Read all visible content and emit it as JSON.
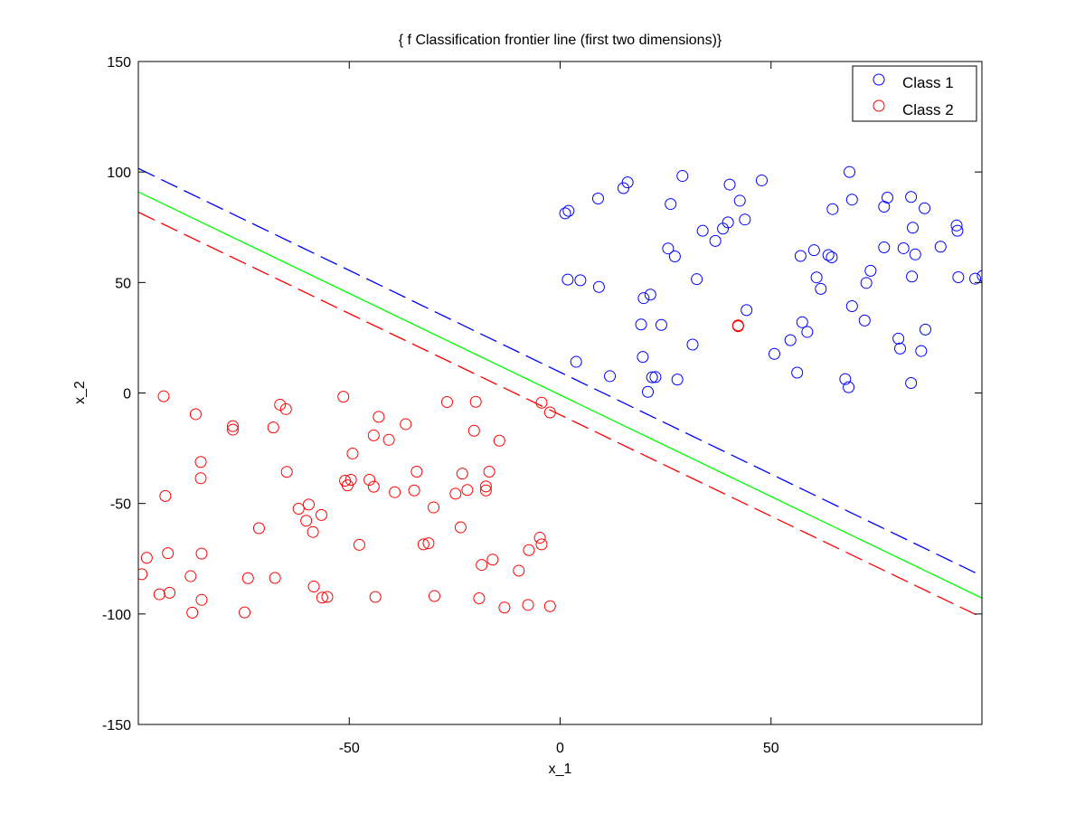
{
  "chart_data": {
    "type": "scatter",
    "title": "{ f Classification frontier line (first two dimensions)}",
    "xlabel": "x_1",
    "ylabel": "x_2",
    "xlim": [
      -100,
      100
    ],
    "ylim": [
      -150,
      150
    ],
    "xticks": [
      -50,
      0,
      50
    ],
    "yticks": [
      -150,
      -100,
      -50,
      0,
      50,
      100,
      150
    ],
    "xtick_labels": [
      "-50",
      "0",
      "50"
    ],
    "ytick_labels": [
      "-150",
      "-100",
      "-50",
      "0",
      "50",
      "100",
      "150"
    ],
    "grid": false,
    "legend_position": "top-right",
    "series": [
      {
        "name": "Class 1",
        "kind": "scatter",
        "marker": "circle-open",
        "color": "#0000ff",
        "points": [
          [
            1.2,
            81.3
          ],
          [
            2.0,
            82.4
          ],
          [
            1.8,
            51.3
          ],
          [
            4.8,
            51.0
          ],
          [
            9.2,
            48.0
          ],
          [
            9.0,
            88.0
          ],
          [
            15.0,
            92.7
          ],
          [
            16.0,
            95.3
          ],
          [
            3.8,
            14.1
          ],
          [
            11.8,
            7.6
          ],
          [
            19.2,
            31.0
          ],
          [
            19.6,
            16.3
          ],
          [
            19.8,
            42.9
          ],
          [
            21.4,
            44.5
          ],
          [
            20.8,
            0.5
          ],
          [
            21.8,
            7.1
          ],
          [
            22.6,
            7.2
          ],
          [
            24.0,
            30.8
          ],
          [
            25.6,
            65.4
          ],
          [
            26.2,
            85.5
          ],
          [
            27.2,
            61.8
          ],
          [
            27.8,
            6.1
          ],
          [
            29.0,
            98.2
          ],
          [
            31.4,
            21.9
          ],
          [
            32.4,
            51.5
          ],
          [
            33.8,
            73.4
          ],
          [
            36.8,
            68.8
          ],
          [
            38.6,
            74.4
          ],
          [
            39.8,
            77.2
          ],
          [
            40.2,
            94.3
          ],
          [
            42.6,
            87.0
          ],
          [
            43.8,
            78.5
          ],
          [
            44.2,
            37.5
          ],
          [
            47.8,
            96.2
          ],
          [
            50.8,
            17.7
          ],
          [
            54.6,
            23.9
          ],
          [
            56.2,
            9.2
          ],
          [
            57.0,
            62.0
          ],
          [
            57.4,
            32.0
          ],
          [
            58.6,
            27.6
          ],
          [
            60.2,
            64.6
          ],
          [
            60.8,
            52.3
          ],
          [
            61.8,
            47.1
          ],
          [
            63.6,
            62.4
          ],
          [
            64.4,
            61.4
          ],
          [
            64.6,
            83.2
          ],
          [
            67.6,
            6.3
          ],
          [
            68.4,
            2.6
          ],
          [
            68.6,
            100.0
          ],
          [
            69.2,
            87.5
          ],
          [
            69.2,
            39.3
          ],
          [
            72.2,
            32.8
          ],
          [
            72.6,
            49.8
          ],
          [
            73.6,
            55.3
          ],
          [
            76.8,
            84.3
          ],
          [
            76.8,
            65.9
          ],
          [
            77.6,
            88.4
          ],
          [
            80.2,
            24.6
          ],
          [
            80.6,
            20.1
          ],
          [
            81.4,
            65.5
          ],
          [
            83.2,
            88.7
          ],
          [
            83.2,
            4.5
          ],
          [
            83.4,
            52.7
          ],
          [
            83.6,
            74.8
          ],
          [
            84.2,
            62.7
          ],
          [
            85.6,
            19.0
          ],
          [
            86.4,
            83.6
          ],
          [
            86.6,
            28.7
          ],
          [
            90.2,
            66.2
          ],
          [
            94.0,
            75.8
          ],
          [
            94.2,
            73.4
          ],
          [
            94.4,
            52.4
          ],
          [
            98.4,
            51.7
          ],
          [
            100.2,
            53.0
          ]
        ]
      },
      {
        "name": "Class 2",
        "kind": "scatter",
        "marker": "circle-open",
        "color": "#ff0000",
        "points": [
          [
            -99.2,
            -82.0
          ],
          [
            -98.0,
            -74.6
          ],
          [
            -95.0,
            -91.1
          ],
          [
            -94.0,
            -1.5
          ],
          [
            -93.6,
            -46.6
          ],
          [
            -93.0,
            -72.5
          ],
          [
            -92.6,
            -90.4
          ],
          [
            -87.6,
            -82.9
          ],
          [
            -87.2,
            -99.4
          ],
          [
            -86.4,
            -9.6
          ],
          [
            -85.2,
            -31.2
          ],
          [
            -85.2,
            -38.6
          ],
          [
            -85.0,
            -72.7
          ],
          [
            -85.0,
            -93.6
          ],
          [
            -77.6,
            -15.0
          ],
          [
            -77.6,
            -16.6
          ],
          [
            -74.8,
            -99.3
          ],
          [
            -74.0,
            -83.8
          ],
          [
            -71.4,
            -61.2
          ],
          [
            -68.0,
            -15.6
          ],
          [
            -67.6,
            -83.7
          ],
          [
            -66.4,
            -5.3
          ],
          [
            -65.0,
            -7.3
          ],
          [
            -64.8,
            -35.7
          ],
          [
            -62.0,
            -52.4
          ],
          [
            -60.2,
            -57.8
          ],
          [
            -59.6,
            -50.5
          ],
          [
            -58.6,
            -62.9
          ],
          [
            -58.4,
            -87.6
          ],
          [
            -56.6,
            -55.2
          ],
          [
            -56.4,
            -92.6
          ],
          [
            -55.2,
            -92.3
          ],
          [
            -51.4,
            -1.7
          ],
          [
            -51.0,
            -39.7
          ],
          [
            -50.4,
            -41.8
          ],
          [
            -49.6,
            -39.3
          ],
          [
            -49.2,
            -27.4
          ],
          [
            -47.6,
            -68.7
          ],
          [
            -45.2,
            -39.3
          ],
          [
            -44.2,
            -19.2
          ],
          [
            -44.2,
            -42.4
          ],
          [
            -43.8,
            -92.3
          ],
          [
            -43.0,
            -10.8
          ],
          [
            -40.6,
            -21.2
          ],
          [
            -39.2,
            -44.9
          ],
          [
            -36.6,
            -14.1
          ],
          [
            -34.6,
            -44.1
          ],
          [
            -34.0,
            -35.6
          ],
          [
            -32.4,
            -68.5
          ],
          [
            -31.2,
            -68.0
          ],
          [
            -30.0,
            -51.8
          ],
          [
            -29.8,
            -91.9
          ],
          [
            -26.8,
            -4.1
          ],
          [
            -24.8,
            -45.6
          ],
          [
            -23.6,
            -60.8
          ],
          [
            -23.2,
            -36.5
          ],
          [
            -22.0,
            -43.9
          ],
          [
            -20.4,
            -17.1
          ],
          [
            -20.0,
            -4.0
          ],
          [
            -19.2,
            -92.9
          ],
          [
            -18.6,
            -77.8
          ],
          [
            -17.6,
            -44.1
          ],
          [
            -17.6,
            -42.3
          ],
          [
            -16.8,
            -35.6
          ],
          [
            -16.0,
            -75.4
          ],
          [
            -14.4,
            -21.6
          ],
          [
            -13.2,
            -97.1
          ],
          [
            -9.8,
            -80.4
          ],
          [
            -7.4,
            -71.1
          ],
          [
            -7.6,
            -95.9
          ],
          [
            -4.8,
            -65.5
          ],
          [
            -4.4,
            -68.5
          ],
          [
            -4.4,
            -4.4
          ],
          [
            -2.4,
            -8.8
          ],
          [
            -2.4,
            -96.5
          ],
          [
            42.2,
            30.6
          ],
          [
            42.2,
            30.2
          ],
          [
            42.2,
            30.4
          ]
        ]
      },
      {
        "name": "",
        "kind": "line",
        "color": "#00ff00",
        "dash": "solid",
        "points": [
          [
            -100,
            91.0
          ],
          [
            100,
            -92.8
          ]
        ]
      },
      {
        "name": "",
        "kind": "line",
        "color": "#0000ff",
        "dash": "dashed",
        "points": [
          [
            -100,
            101.6
          ],
          [
            100,
            -82.8
          ]
        ]
      },
      {
        "name": "",
        "kind": "line",
        "color": "#ff0000",
        "dash": "dashed",
        "points": [
          [
            -100,
            81.8
          ],
          [
            100,
            -101.6
          ]
        ]
      }
    ]
  }
}
